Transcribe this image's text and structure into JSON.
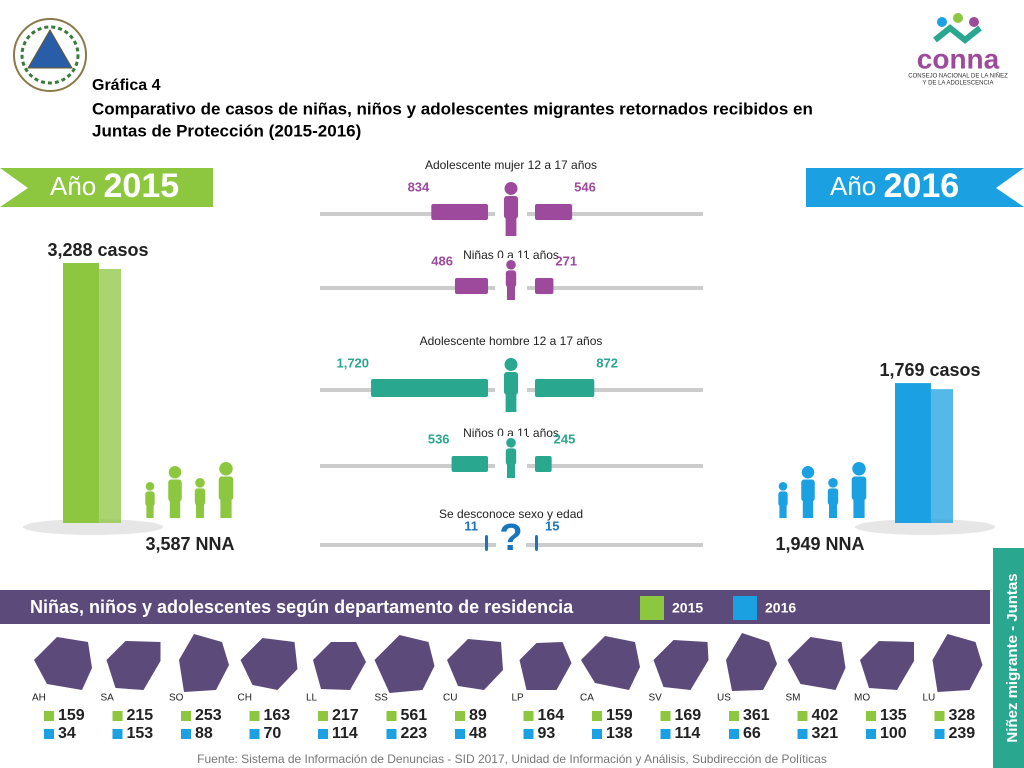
{
  "header": {
    "label": "Gráfica 4",
    "title_line1": "Comparativo de casos de niñas, niños y adolescentes migrantes retornados recibidos en",
    "title_line2": "Juntas de Protección (2015-2016)",
    "logo": "conna",
    "logo_subtitle_line1": "CONSEJO NACIONAL DE LA NIÑEZ",
    "logo_subtitle_line2": "Y DE LA ADOLESCENCIA"
  },
  "years": [
    {
      "prefix": "Año",
      "year": "2015",
      "cases": 3288,
      "cases_label": "3,288 casos",
      "nna_label": "3,587 NNA",
      "color": "#8dc63f"
    },
    {
      "prefix": "Año",
      "year": "2016",
      "cases": 1769,
      "cases_label": "1,769 casos",
      "nna_label": "1,949 NNA",
      "color": "#1ba1e2"
    }
  ],
  "groups": [
    {
      "label": "Adolescente mujer 12 a 17 años",
      "values": [
        834,
        546
      ],
      "value_labels": [
        "834",
        "546"
      ],
      "color": "#9e4a9c"
    },
    {
      "label": "Niñas 0 a 11 años",
      "values": [
        486,
        271
      ],
      "value_labels": [
        "486",
        "271"
      ],
      "color": "#9e4a9c"
    },
    {
      "label": "Adolescente hombre 12 a 17 años",
      "values": [
        1720,
        872
      ],
      "value_labels": [
        "1,720",
        "872"
      ],
      "color": "#2aa78f"
    },
    {
      "label": "Niños 0 a 11 años",
      "values": [
        536,
        245
      ],
      "value_labels": [
        "536",
        "245"
      ],
      "color": "#2aa78f"
    },
    {
      "label": "Se desconoce sexo y edad",
      "values": [
        11,
        15
      ],
      "value_labels": [
        "11",
        "15"
      ],
      "color": "#1b75bc",
      "symbol": "?"
    }
  ],
  "departments": {
    "title": "Niñas, niños y adolescentes según departamento de residencia",
    "legend": [
      "2015",
      "2016"
    ],
    "codes": [
      "AH",
      "SA",
      "SO",
      "CH",
      "LL",
      "SS",
      "CU",
      "LP",
      "CA",
      "SV",
      "US",
      "SM",
      "MO",
      "LU"
    ],
    "values_2015": [
      159,
      215,
      253,
      163,
      217,
      561,
      89,
      164,
      159,
      169,
      361,
      402,
      135,
      328
    ],
    "values_2016": [
      34,
      153,
      88,
      70,
      114,
      223,
      48,
      93,
      138,
      114,
      66,
      321,
      100,
      239
    ]
  },
  "side_label": "Niñez migrante - Juntas",
  "source": "Fuente: Sistema de Información de Denuncias - SID 2017, Unidad de Información y Análisis, Subdirección de Políticas"
}
